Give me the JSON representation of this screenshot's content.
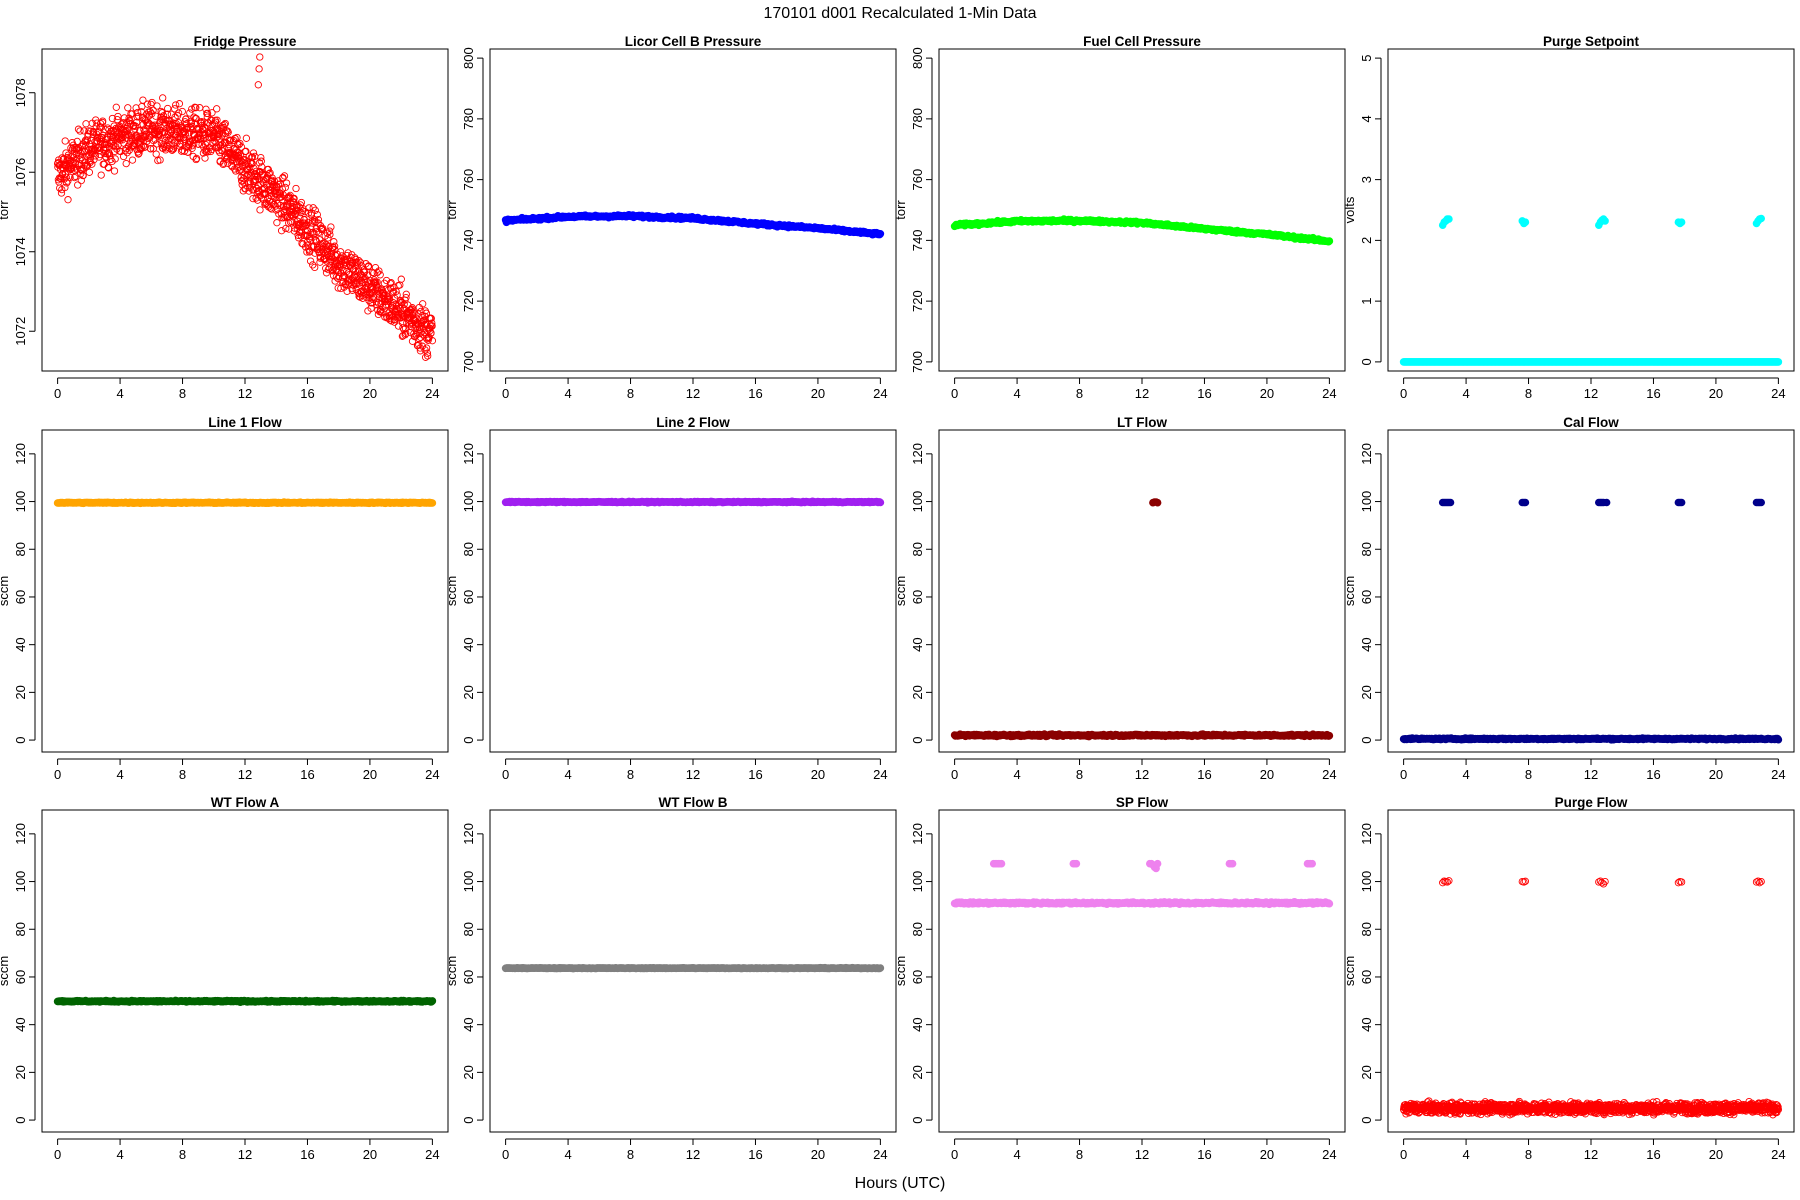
{
  "figure": {
    "title": "170101    d001    Recalculated 1-Min Data",
    "xlabel": "Hours (UTC)",
    "xticks": [
      0,
      4,
      8,
      12,
      16,
      20,
      24
    ],
    "xlim": [
      -1,
      25
    ]
  },
  "chart_data": [
    {
      "type": "scatter",
      "title": "Fridge Pressure",
      "ylabel": "torr",
      "color": "#ff0000",
      "marker": "open-circle",
      "ylim": [
        1071.0,
        1079.1
      ],
      "yticks": [
        1072,
        1074,
        1076,
        1078
      ],
      "trend": {
        "x": [
          0,
          2,
          4,
          6,
          8,
          10,
          12,
          12.9,
          14,
          16,
          18,
          20,
          22,
          24
        ],
        "y": [
          1075.9,
          1076.6,
          1076.9,
          1077.1,
          1077.0,
          1076.9,
          1076.1,
          1075.8,
          1075.4,
          1074.6,
          1073.7,
          1073.1,
          1072.5,
          1071.9
        ]
      },
      "noise": 0.45,
      "extra": [
        {
          "x": [
            12.85,
            12.9,
            12.95
          ],
          "y": [
            1078.2,
            1078.6,
            1078.9
          ]
        }
      ]
    },
    {
      "type": "scatter",
      "title": "Licor Cell B Pressure",
      "ylabel": "torr",
      "color": "#0000ff",
      "marker": "filled-circle",
      "ylim": [
        697,
        803
      ],
      "yticks": [
        700,
        720,
        740,
        760,
        780,
        800
      ],
      "trend": {
        "x": [
          0,
          4,
          8,
          12,
          16,
          20,
          24
        ],
        "y": [
          746.5,
          747.8,
          748.0,
          747.3,
          745.5,
          744.0,
          742.0
        ]
      },
      "noise": 0.3
    },
    {
      "type": "scatter",
      "title": "Fuel Cell Pressure",
      "ylabel": "torr",
      "color": "#00ff00",
      "marker": "filled-circle",
      "ylim": [
        697,
        803
      ],
      "yticks": [
        700,
        720,
        740,
        760,
        780,
        800
      ],
      "trend": {
        "x": [
          0,
          4,
          8,
          12,
          16,
          20,
          24
        ],
        "y": [
          745.0,
          746.3,
          746.5,
          745.8,
          743.8,
          742.0,
          739.7
        ]
      },
      "noise": 0.3
    },
    {
      "type": "scatter",
      "title": "Purge Setpoint",
      "ylabel": "volts",
      "color": "#00ffff",
      "marker": "filled-circle",
      "ylim": [
        -0.15,
        5.15
      ],
      "yticks": [
        0,
        1,
        2,
        3,
        4,
        5
      ],
      "trend": {
        "x": [
          0,
          24
        ],
        "y": [
          0,
          0
        ]
      },
      "noise": 0.0,
      "extra": [
        {
          "x": [
            2.5,
            2.6,
            2.7,
            2.8,
            2.9
          ],
          "y": [
            2.25,
            2.3,
            2.32,
            2.35,
            2.35
          ]
        },
        {
          "x": [
            7.6,
            7.7,
            7.8
          ],
          "y": [
            2.32,
            2.28,
            2.3
          ]
        },
        {
          "x": [
            12.5,
            12.6,
            12.7,
            12.8,
            12.9
          ],
          "y": [
            2.25,
            2.3,
            2.33,
            2.35,
            2.32
          ]
        },
        {
          "x": [
            17.6,
            17.7,
            17.8
          ],
          "y": [
            2.3,
            2.28,
            2.3
          ]
        },
        {
          "x": [
            22.6,
            22.7,
            22.8,
            22.9
          ],
          "y": [
            2.28,
            2.32,
            2.35,
            2.36
          ]
        }
      ]
    },
    {
      "type": "scatter",
      "title": "Line 1 Flow",
      "ylabel": "sccm",
      "color": "#ffa500",
      "marker": "filled-circle",
      "ylim": [
        -5,
        130
      ],
      "yticks": [
        0,
        20,
        40,
        60,
        80,
        100,
        120
      ],
      "trend": {
        "x": [
          0,
          24
        ],
        "y": [
          99.5,
          99.5
        ]
      },
      "noise": 0.15
    },
    {
      "type": "scatter",
      "title": "Line 2 Flow",
      "ylabel": "sccm",
      "color": "#a020f0",
      "marker": "filled-circle",
      "ylim": [
        -5,
        130
      ],
      "yticks": [
        0,
        20,
        40,
        60,
        80,
        100,
        120
      ],
      "trend": {
        "x": [
          0,
          24
        ],
        "y": [
          99.8,
          99.8
        ]
      },
      "noise": 0.15
    },
    {
      "type": "scatter",
      "title": "LT Flow",
      "ylabel": "sccm",
      "color": "#8b0000",
      "marker": "filled-circle",
      "ylim": [
        -5,
        130
      ],
      "yticks": [
        0,
        20,
        40,
        60,
        80,
        100,
        120
      ],
      "trend": {
        "x": [
          0,
          24
        ],
        "y": [
          2.0,
          2.0
        ]
      },
      "noise": 0.3,
      "extra": [
        {
          "x": [
            12.7,
            12.8,
            12.9,
            13.0
          ],
          "y": [
            99.5,
            99.8,
            99.8,
            99.5
          ]
        }
      ]
    },
    {
      "type": "scatter",
      "title": "Cal Flow",
      "ylabel": "sccm",
      "color": "#00008b",
      "marker": "filled-circle",
      "ylim": [
        -5,
        130
      ],
      "yticks": [
        0,
        20,
        40,
        60,
        80,
        100,
        120
      ],
      "trend": {
        "x": [
          0,
          24
        ],
        "y": [
          0.5,
          0.5
        ]
      },
      "noise": 0.2,
      "extra": [
        {
          "x": [
            2.5,
            2.6,
            2.7,
            2.8,
            2.9,
            3.0
          ],
          "y": [
            99.6,
            99.6,
            99.6,
            99.6,
            99.6,
            99.6
          ]
        },
        {
          "x": [
            7.6,
            7.7,
            7.8
          ],
          "y": [
            99.6,
            99.6,
            99.6
          ]
        },
        {
          "x": [
            12.5,
            12.6,
            12.7,
            12.8,
            13.0
          ],
          "y": [
            99.6,
            99.6,
            99.6,
            99.6,
            99.6
          ]
        },
        {
          "x": [
            17.6,
            17.7,
            17.8
          ],
          "y": [
            99.6,
            99.6,
            99.6
          ]
        },
        {
          "x": [
            22.6,
            22.7,
            22.8,
            22.9
          ],
          "y": [
            99.6,
            99.6,
            99.6,
            99.6
          ]
        }
      ]
    },
    {
      "type": "scatter",
      "title": "WT Flow A",
      "ylabel": "sccm",
      "color": "#006400",
      "marker": "filled-circle",
      "ylim": [
        -5,
        130
      ],
      "yticks": [
        0,
        20,
        40,
        60,
        80,
        100,
        120
      ],
      "trend": {
        "x": [
          0,
          24
        ],
        "y": [
          49.8,
          49.8
        ]
      },
      "noise": 0.2
    },
    {
      "type": "scatter",
      "title": "WT Flow B",
      "ylabel": "sccm",
      "color": "#808080",
      "marker": "filled-circle",
      "ylim": [
        -5,
        130
      ],
      "yticks": [
        0,
        20,
        40,
        60,
        80,
        100,
        120
      ],
      "trend": {
        "x": [
          0,
          24
        ],
        "y": [
          63.7,
          63.7
        ]
      },
      "noise": 0.1
    },
    {
      "type": "scatter",
      "title": "SP Flow",
      "ylabel": "sccm",
      "color": "#ee82ee",
      "marker": "filled-circle",
      "ylim": [
        -5,
        130
      ],
      "yticks": [
        0,
        20,
        40,
        60,
        80,
        100,
        120
      ],
      "trend": {
        "x": [
          0,
          24
        ],
        "y": [
          91.0,
          91.0
        ]
      },
      "noise": 0.3,
      "extra": [
        {
          "x": [
            2.5,
            2.6,
            2.7,
            2.8,
            2.9,
            3.0
          ],
          "y": [
            107.5,
            107.5,
            107.5,
            107.5,
            107.5,
            107.5
          ]
        },
        {
          "x": [
            7.6,
            7.7,
            7.8
          ],
          "y": [
            107.5,
            107.5,
            107.5
          ]
        },
        {
          "x": [
            12.5,
            12.6,
            12.7,
            12.8,
            12.9,
            13.0
          ],
          "y": [
            107.5,
            107.5,
            107.0,
            106.0,
            105.5,
            107.5
          ]
        },
        {
          "x": [
            17.6,
            17.7,
            17.8
          ],
          "y": [
            107.5,
            107.5,
            107.5
          ]
        },
        {
          "x": [
            22.6,
            22.7,
            22.8,
            22.9
          ],
          "y": [
            107.5,
            107.5,
            107.5,
            107.5
          ]
        }
      ]
    },
    {
      "type": "scatter",
      "title": "Purge Flow",
      "ylabel": "sccm",
      "color": "#ff0000",
      "marker": "open-circle",
      "ylim": [
        -5,
        130
      ],
      "yticks": [
        0,
        20,
        40,
        60,
        80,
        100,
        120
      ],
      "trend": {
        "x": [
          0,
          24
        ],
        "y": [
          5.0,
          5.0
        ]
      },
      "noise": 1.6,
      "extra": [
        {
          "x": [
            2.5,
            2.6,
            2.7,
            2.8,
            2.9
          ],
          "y": [
            99.5,
            100.2,
            100.0,
            99.8,
            100.3
          ]
        },
        {
          "x": [
            7.6,
            7.7,
            7.8
          ],
          "y": [
            100.0,
            99.8,
            100.1
          ]
        },
        {
          "x": [
            12.5,
            12.6,
            12.7,
            12.8,
            12.9
          ],
          "y": [
            99.8,
            100.2,
            99.5,
            99.0,
            100.0
          ]
        },
        {
          "x": [
            17.6,
            17.7,
            17.8
          ],
          "y": [
            99.5,
            100.0,
            99.8
          ]
        },
        {
          "x": [
            22.6,
            22.7,
            22.8,
            22.9
          ],
          "y": [
            99.8,
            100.2,
            99.5,
            100.0
          ]
        }
      ]
    }
  ]
}
